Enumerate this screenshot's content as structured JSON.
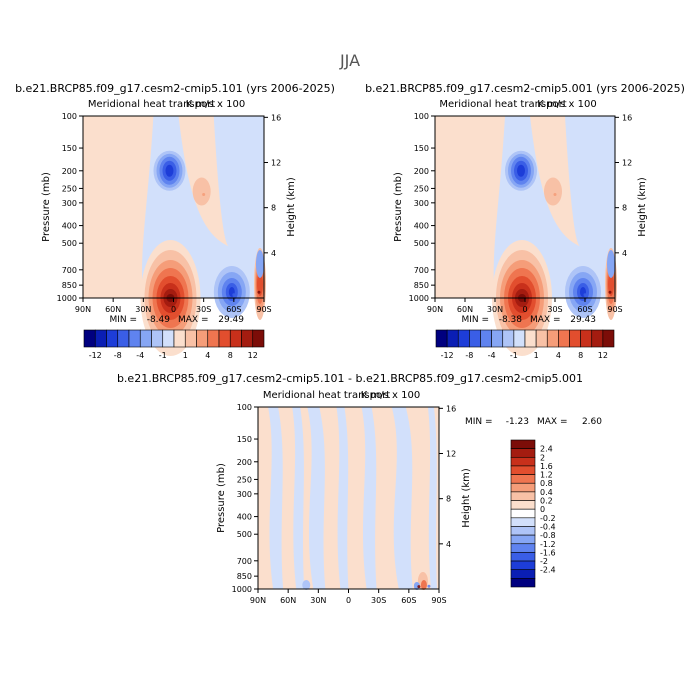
{
  "season": "JJA",
  "chart_data": [
    {
      "type": "contour",
      "case_title": "b.e21.BRCP85.f09_g17.cesm2-cmip5.101 (yrs 2006-2025)",
      "subtitle": "Meridional heat transport",
      "units": "K m/s x 100",
      "xlabel": "",
      "ylabel": "Pressure (mb)",
      "y2label": "Height (km)",
      "x_ticks": [
        "90N",
        "60N",
        "30N",
        "0",
        "30S",
        "60S",
        "90S"
      ],
      "x_range": [
        90,
        -90
      ],
      "pressure_ticks": [
        100,
        150,
        200,
        250,
        300,
        400,
        500,
        700,
        850,
        1000
      ],
      "height_ticks": [
        4,
        8,
        12,
        16
      ],
      "min_label": "MIN =",
      "min": "-8.49",
      "max_label": "MAX =",
      "max": "29.49",
      "features": [
        {
          "lat": 5,
          "p": 210,
          "value": -8.49,
          "sign": "negative"
        },
        {
          "lat": 2,
          "p": 1000,
          "value": 29.49,
          "sign": "positive"
        },
        {
          "lat": -30,
          "p": 270,
          "value": 2,
          "sign": "positive"
        },
        {
          "lat": -60,
          "p": 960,
          "value": -8,
          "sign": "negative"
        },
        {
          "lat": -85,
          "p": 930,
          "value": 12,
          "sign": "positive"
        }
      ]
    },
    {
      "type": "contour",
      "case_title": "b.e21.BRCP85.f09_g17.cesm2-cmip5.001 (yrs 2006-2025)",
      "subtitle": "Meridional heat transport",
      "units": "K m/s x 100",
      "xlabel": "",
      "ylabel": "Pressure (mb)",
      "y2label": "Height (km)",
      "x_ticks": [
        "90N",
        "60N",
        "30N",
        "0",
        "30S",
        "60S",
        "90S"
      ],
      "x_range": [
        90,
        -90
      ],
      "pressure_ticks": [
        100,
        150,
        200,
        250,
        300,
        400,
        500,
        700,
        850,
        1000
      ],
      "height_ticks": [
        4,
        8,
        12,
        16
      ],
      "min_label": "MIN =",
      "min": "-8.38",
      "max_label": "MAX =",
      "max": "29.43",
      "features": [
        {
          "lat": 5,
          "p": 210,
          "value": -8.38,
          "sign": "negative"
        },
        {
          "lat": 2,
          "p": 1000,
          "value": 29.43,
          "sign": "positive"
        },
        {
          "lat": -30,
          "p": 270,
          "value": 2,
          "sign": "positive"
        },
        {
          "lat": -60,
          "p": 960,
          "value": -8,
          "sign": "negative"
        },
        {
          "lat": -85,
          "p": 930,
          "value": 12,
          "sign": "positive"
        }
      ]
    },
    {
      "type": "contour",
      "case_title": "b.e21.BRCP85.f09_g17.cesm2-cmip5.101 - b.e21.BRCP85.f09_g17.cesm2-cmip5.001",
      "subtitle": "Meridional heat transport",
      "units": "K m/s x 100",
      "xlabel": "",
      "ylabel": "Pressure (mb)",
      "y2label": "Height (km)",
      "x_ticks": [
        "90N",
        "60N",
        "30N",
        "0",
        "30S",
        "60S",
        "90S"
      ],
      "x_range": [
        90,
        -90
      ],
      "pressure_ticks": [
        100,
        150,
        200,
        250,
        300,
        400,
        500,
        700,
        850,
        1000
      ],
      "height_ticks": [
        4,
        8,
        12,
        16
      ],
      "min_label": "MIN =",
      "min": "-1.23",
      "max_label": "MAX =",
      "max": "2.60",
      "features": [
        {
          "lat": -70,
          "p": 970,
          "value": 2.6,
          "sign": "positive"
        },
        {
          "lat": -80,
          "p": 990,
          "value": -1.23,
          "sign": "negative"
        }
      ]
    }
  ],
  "colorbar_main": {
    "orientation": "horizontal",
    "labels": [
      "-12",
      "-8",
      "-4",
      "-1",
      "1",
      "4",
      "8",
      "12"
    ],
    "colors": [
      "#00007f",
      "#0a1eb4",
      "#1d3dd8",
      "#3a5ee6",
      "#5f83ef",
      "#86a6f4",
      "#aec4f7",
      "#d2e0fb",
      "#fbdfcd",
      "#f8c1a6",
      "#f59d79",
      "#ef7550",
      "#e24e2e",
      "#c8301b",
      "#a41c10",
      "#7c0d08"
    ]
  },
  "colorbar_diff": {
    "orientation": "vertical",
    "labels": [
      "2.4",
      "2",
      "1.6",
      "1.2",
      "0.8",
      "0.4",
      "0.2",
      "0",
      "-0.2",
      "-0.4",
      "-0.8",
      "-1.2",
      "-1.6",
      "-2",
      "-2.4"
    ],
    "colors": [
      "#7c0d08",
      "#a41c10",
      "#c8301b",
      "#e24e2e",
      "#ef7550",
      "#f59d79",
      "#f8c1a6",
      "#fbdfcd",
      "#ffffff",
      "#d2e0fb",
      "#aec4f7",
      "#86a6f4",
      "#5f83ef",
      "#3a5ee6",
      "#1d3dd8",
      "#0a1eb4",
      "#00007f"
    ]
  }
}
